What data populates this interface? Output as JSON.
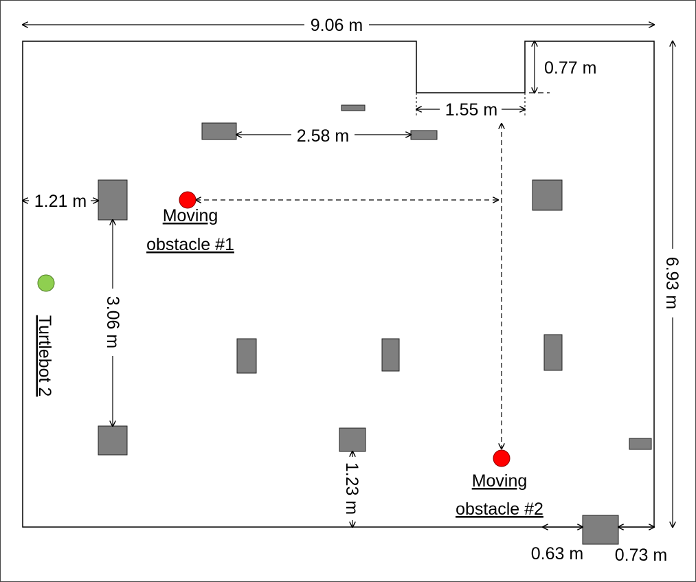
{
  "dimensions": {
    "width_total": "9.06 m",
    "height_total": "6.93 m",
    "notch_depth": "0.77 m",
    "notch_width": "1.55 m",
    "top_obstacle_gap": "2.58 m",
    "left_wall_gap": "1.21 m",
    "left_column_gap": "3.06 m",
    "bottom_gap": "1.23 m",
    "bottom_right_left_gap": "0.63 m",
    "bottom_right_right_gap": "0.73 m"
  },
  "labels": {
    "obstacle1_line1": "Moving",
    "obstacle1_line2": "obstacle #1",
    "obstacle2_line1": "Moving",
    "obstacle2_line2": "obstacle #2",
    "robot": "Turtlebot 2"
  },
  "colors": {
    "obstacle_fill": "#7f7f7f",
    "moving_obstacle": "#ff0000",
    "robot": "#8fcf50",
    "line": "#000000"
  }
}
